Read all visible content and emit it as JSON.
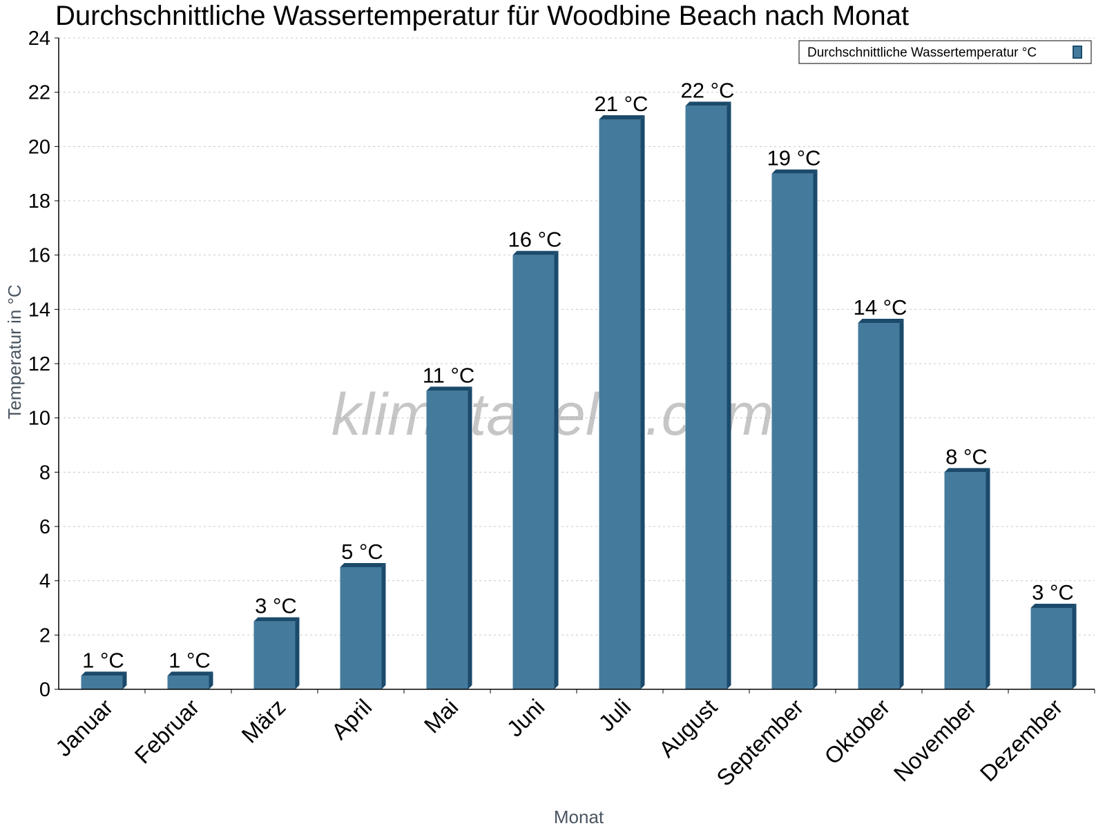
{
  "chart_data": {
    "type": "bar",
    "title": "Durchschnittliche Wassertemperatur für Woodbine Beach nach Monat",
    "xlabel": "Monat",
    "ylabel": "Temperatur in °C",
    "categories": [
      "Januar",
      "Februar",
      "März",
      "April",
      "Mai",
      "Juni",
      "Juli",
      "August",
      "September",
      "Oktober",
      "November",
      "Dezember"
    ],
    "series": [
      {
        "name": "Durchschnittliche Wassertemperatur °C",
        "values": [
          0.5,
          0.5,
          2.5,
          4.5,
          11.0,
          16.0,
          21.0,
          21.5,
          19.0,
          13.5,
          8.0,
          3.0
        ],
        "labels": [
          "1 °C",
          "1 °C",
          "3 °C",
          "5 °C",
          "11 °C",
          "16 °C",
          "21 °C",
          "22 °C",
          "19 °C",
          "14 °C",
          "8 °C",
          "3 °C"
        ],
        "color": "#447b9d",
        "edge_color": "#1b4a6b"
      }
    ],
    "ylim": [
      0,
      24
    ],
    "yticks": [
      0,
      2,
      4,
      6,
      8,
      10,
      12,
      14,
      16,
      18,
      20,
      22,
      24
    ],
    "grid": true,
    "legend_position": "top-right",
    "watermark": "klimatabelle.com"
  }
}
